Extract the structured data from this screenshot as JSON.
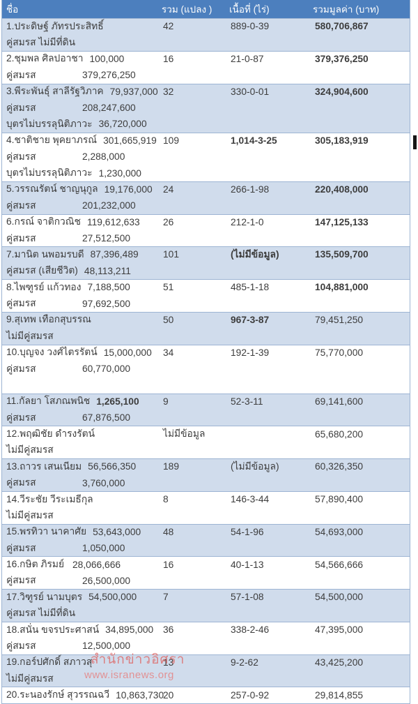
{
  "colors": {
    "header_bg": "#4c7fbe",
    "header_text": "#fdfdfd",
    "row_shaded_bg": "#d0dcec",
    "row_plain_bg": "#ffffff",
    "border": "#9db4d3",
    "body_text": "#3d3d3d",
    "watermark": "#de6e6e"
  },
  "header": {
    "name": "ชื่อ",
    "plots": "รวม (แปลง )",
    "area": "เนื้อที่ (ไร่)",
    "value": "รวมมูลค่า (บาท)"
  },
  "watermark": {
    "line1": "สำนักข่าวอิศรา",
    "line2": "www.isranews.org"
  },
  "rows": [
    {
      "shaded": true,
      "lines": [
        {
          "name": "1.ประดิษฐ์ ภัทรประสิทธิ์",
          "plots": "42",
          "area": "889-0-39",
          "value": "580,706,867",
          "value_bold": true
        },
        {
          "name": "คู่สมรส ไม่มีที่ดิน"
        }
      ]
    },
    {
      "shaded": false,
      "lines": [
        {
          "name": "2.ชุมพล ศิลปอาชา",
          "amount": "100,000",
          "plots": "16",
          "area": "21-0-87",
          "value": "379,376,250",
          "value_bold": true
        },
        {
          "name": "คู่สมรส",
          "amount": "379,276,250",
          "indent": true
        }
      ]
    },
    {
      "shaded": true,
      "lines": [
        {
          "name": "3.พีระพันธุ์ สาลีรัฐวิภาค",
          "amount": "79,937,000",
          "plots": "32",
          "area": "330-0-01",
          "value": "324,904,600",
          "value_bold": true
        },
        {
          "name": "คู่สมรส",
          "amount": "208,247,600",
          "indent": true
        },
        {
          "name": "บุตรไม่บรรลุนิติภาวะ",
          "amount": "36,720,000"
        }
      ]
    },
    {
      "shaded": false,
      "lines": [
        {
          "name": "4.ชาติชาย พุคยาภรณ์",
          "amount": "301,665,919",
          "plots": "109",
          "area": "1,014-3-25",
          "area_bold": true,
          "value": "305,183,919",
          "value_bold": true
        },
        {
          "name": "คู่สมรส",
          "amount": "2,288,000",
          "indent": true
        },
        {
          "name": "บุตรไม่บรรลุนิติภาวะ",
          "amount": "1,230,000"
        }
      ]
    },
    {
      "shaded": true,
      "lines": [
        {
          "name": "5.วรรณรัตน์ ชาญนุกูล",
          "amount": "19,176,000",
          "plots": "24",
          "area": "266-1-98",
          "value": "220,408,000",
          "value_bold": true
        },
        {
          "name": "คู่สมรส",
          "amount": "201,232,000",
          "indent": true
        }
      ]
    },
    {
      "shaded": false,
      "lines": [
        {
          "name": "6.กรณ์ จาติกวณิช",
          "amount": "119,612,633",
          "plots": "26",
          "area": "212-1-0",
          "value": "147,125,133",
          "value_bold": true
        },
        {
          "name": "คู่สมรส",
          "amount": "27,512,500",
          "indent": true
        }
      ]
    },
    {
      "shaded": true,
      "lines": [
        {
          "name": "7.มานิต นพอมรบดี",
          "amount": "87,396,489",
          "plots": "101",
          "area": "(ไม่มีข้อมูล)",
          "area_bold": true,
          "value": "135,509,700",
          "value_bold": true
        },
        {
          "name": "คู่สมรส (เสียชีวิต)",
          "amount": "48,113,211"
        }
      ]
    },
    {
      "shaded": false,
      "lines": [
        {
          "name": "8.ไพฑูรย์ แก้วทอง",
          "amount": "7,188,500",
          "plots": "51",
          "area": "485-1-18",
          "value": "104,881,000",
          "value_bold": true
        },
        {
          "name": "คู่สมรส",
          "amount": "97,692,500",
          "indent": true
        }
      ]
    },
    {
      "shaded": true,
      "lines": [
        {
          "name": "9.สุเทพ เทือกสุบรรณ",
          "plots": "50",
          "area": "967-3-87",
          "area_bold": true,
          "value": "79,451,250"
        },
        {
          "name": "ไม่มีคู่สมรส"
        }
      ]
    },
    {
      "shaded": false,
      "lines": [
        {
          "name": "10.บุญจง วงศ์ไตรรัตน์",
          "amount": "15,000,000",
          "plots": "34",
          "area": "192-1-39",
          "value": "75,770,000"
        },
        {
          "name": "คู่สมรส",
          "amount": "60,770,000",
          "indent": true
        },
        {}
      ]
    },
    {
      "shaded": true,
      "lines": [
        {
          "name": "11.กัลยา โสภณพนิช",
          "amount": "1,265,100",
          "amount_bold": true,
          "plots": "9",
          "area": "52-3-11",
          "value": "69,141,600"
        },
        {
          "name": "คู่สมรส",
          "amount": "67,876,500",
          "indent": true
        }
      ]
    },
    {
      "shaded": false,
      "lines": [
        {
          "name": "12.พฤฒิชัย ดำรงรัตน์",
          "plots": "ไม่มีข้อมูล",
          "value": "65,680,200"
        },
        {
          "name": "ไม่มีคู่สมรส"
        }
      ]
    },
    {
      "shaded": true,
      "lines": [
        {
          "name": "13.ถาวร เสนเนียม",
          "amount": "56,566,350",
          "plots": "189",
          "area": "(ไม่มีข้อมูล)",
          "value": "60,326,350"
        },
        {
          "name": "คู่สมรส",
          "amount": "3,760,000",
          "indent": true
        }
      ]
    },
    {
      "shaded": false,
      "lines": [
        {
          "name": "14.วีระชัย วีระเมธีกุล",
          "plots": "8",
          "area": "146-3-44",
          "value": "57,890,400"
        },
        {
          "name": "ไม่มีคู่สมรส"
        }
      ]
    },
    {
      "shaded": true,
      "lines": [
        {
          "name": "15.พรทิวา นาคาศัย",
          "amount": "53,643,000",
          "plots": "48",
          "area": "54-1-96",
          "value": "54,693,000"
        },
        {
          "name": "คู่สมรส",
          "amount": "1,050,000",
          "indent": true
        }
      ]
    },
    {
      "shaded": false,
      "lines": [
        {
          "name": "16.กษิต ภิรมย์",
          "amount": "28,066,666",
          "plots": "16",
          "area": "40-1-13",
          "value": "54,566,666"
        },
        {
          "name": "คู่สมรส",
          "amount": "26,500,000",
          "indent": true
        }
      ]
    },
    {
      "shaded": true,
      "lines": [
        {
          "name": "17.วิฑูรย์ นามบุตร",
          "amount": "54,500,000",
          "plots": "7",
          "area": "57-1-08",
          "value": "54,500,000"
        },
        {
          "name": "คู่สมรส ไม่มีที่ดิน"
        }
      ]
    },
    {
      "shaded": false,
      "lines": [
        {
          "name": "18.สนั่น ขจรประศาสน์",
          "amount": "34,895,000",
          "plots": "36",
          "area": "338-2-46",
          "value": "47,395,000"
        },
        {
          "name": "คู่สมรส",
          "amount": "12,500,000",
          "indent": true
        }
      ]
    },
    {
      "shaded": true,
      "lines": [
        {
          "name": "19.กอร์ปศักดิ์ สภาวสุ",
          "plots": "13",
          "area": "9-2-62",
          "value": "43,425,200"
        },
        {
          "name": "ไม่มีคู่สมรส"
        }
      ]
    },
    {
      "shaded": false,
      "lines": [
        {
          "name": "20.ระนองรักษ์ สุวรรณฉวี",
          "amount": "10,863,730",
          "plots": "20",
          "area": "257-0-92",
          "value": "29,814,855"
        }
      ]
    }
  ]
}
